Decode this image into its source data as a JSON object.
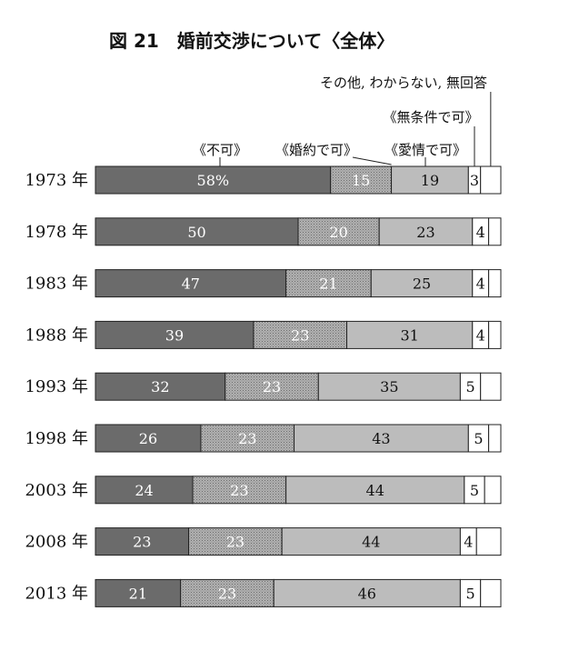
{
  "chart_data": {
    "type": "bar",
    "orientation": "horizontal",
    "stacked": true,
    "title": "図 21　婚前交渉について〈全体〉",
    "categories": [
      "1973 年",
      "1978 年",
      "1983 年",
      "1988 年",
      "1993 年",
      "1998 年",
      "2003 年",
      "2008 年",
      "2013 年"
    ],
    "series": [
      {
        "name": "《不可》",
        "values": [
          58,
          50,
          47,
          39,
          32,
          26,
          24,
          23,
          21
        ],
        "color": "#6b6b6b",
        "pattern": "solid",
        "label_color": "#ffffff"
      },
      {
        "name": "《婚約で可》",
        "values": [
          15,
          20,
          21,
          23,
          23,
          23,
          23,
          23,
          23
        ],
        "color": "#9c9c9c",
        "pattern": "dotted",
        "label_color": "#ffffff"
      },
      {
        "name": "《愛情で可》",
        "values": [
          19,
          23,
          25,
          31,
          35,
          43,
          44,
          44,
          46
        ],
        "color": "#bcbcbc",
        "pattern": "solid",
        "label_color": "#111111"
      },
      {
        "name": "《無条件で可》",
        "values": [
          3,
          4,
          4,
          4,
          5,
          5,
          5,
          4,
          5
        ],
        "color": "#ffffff",
        "pattern": "solid",
        "label_color": "#111111"
      },
      {
        "name": "その他, わからない, 無回答",
        "values": [
          5,
          3,
          3,
          3,
          5,
          3,
          4,
          6,
          5
        ],
        "color": "#ffffff",
        "pattern": "solid",
        "label_color": "#111111"
      }
    ],
    "value_labels": [
      [
        "58%",
        "15",
        "19",
        "3",
        ""
      ],
      [
        "50",
        "20",
        "23",
        "4",
        ""
      ],
      [
        "47",
        "21",
        "25",
        "4",
        ""
      ],
      [
        "39",
        "23",
        "31",
        "4",
        ""
      ],
      [
        "32",
        "23",
        "35",
        "5",
        ""
      ],
      [
        "26",
        "23",
        "43",
        "5",
        ""
      ],
      [
        "24",
        "23",
        "44",
        "5",
        ""
      ],
      [
        "23",
        "23",
        "44",
        "4",
        ""
      ],
      [
        "21",
        "23",
        "46",
        "5",
        ""
      ]
    ],
    "unit": "%",
    "xlim": [
      0,
      100
    ],
    "grid": false
  }
}
